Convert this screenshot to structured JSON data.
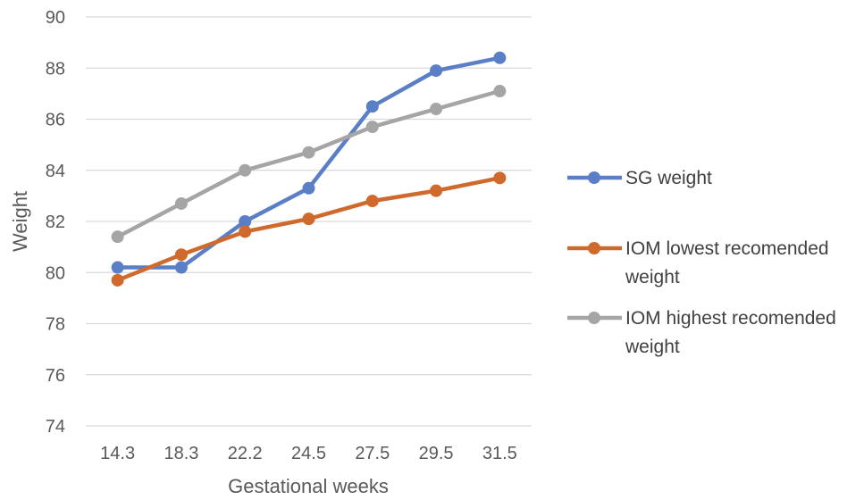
{
  "chart_data": {
    "type": "line",
    "title": "",
    "xlabel": "Gestational weeks",
    "ylabel": "Weight",
    "categories": [
      "14.3",
      "18.3",
      "22.2",
      "24.5",
      "27.5",
      "29.5",
      "31.5"
    ],
    "yticks": [
      "74",
      "76",
      "78",
      "80",
      "82",
      "84",
      "86",
      "88",
      "90"
    ],
    "ylim": [
      74,
      90
    ],
    "grid": true,
    "legend_position": "right",
    "series": [
      {
        "name": "SG weight",
        "color": "#5B7FC7",
        "values": [
          80.2,
          80.2,
          82.0,
          83.3,
          86.5,
          87.9,
          88.4
        ]
      },
      {
        "name": "IOM lowest recomended weight",
        "color": "#D06A2C",
        "values": [
          79.7,
          80.7,
          81.6,
          82.1,
          82.8,
          83.2,
          83.7
        ]
      },
      {
        "name": "IOM highest recomended weight",
        "color": "#A5A5A5",
        "values": [
          81.4,
          82.7,
          84.0,
          84.7,
          85.7,
          86.4,
          87.1
        ]
      }
    ]
  },
  "legend": {
    "items": [
      {
        "lines": [
          "SG weight"
        ]
      },
      {
        "lines": [
          "IOM lowest recomended",
          "weight"
        ]
      },
      {
        "lines": [
          "IOM highest recomended",
          "weight"
        ]
      }
    ]
  }
}
